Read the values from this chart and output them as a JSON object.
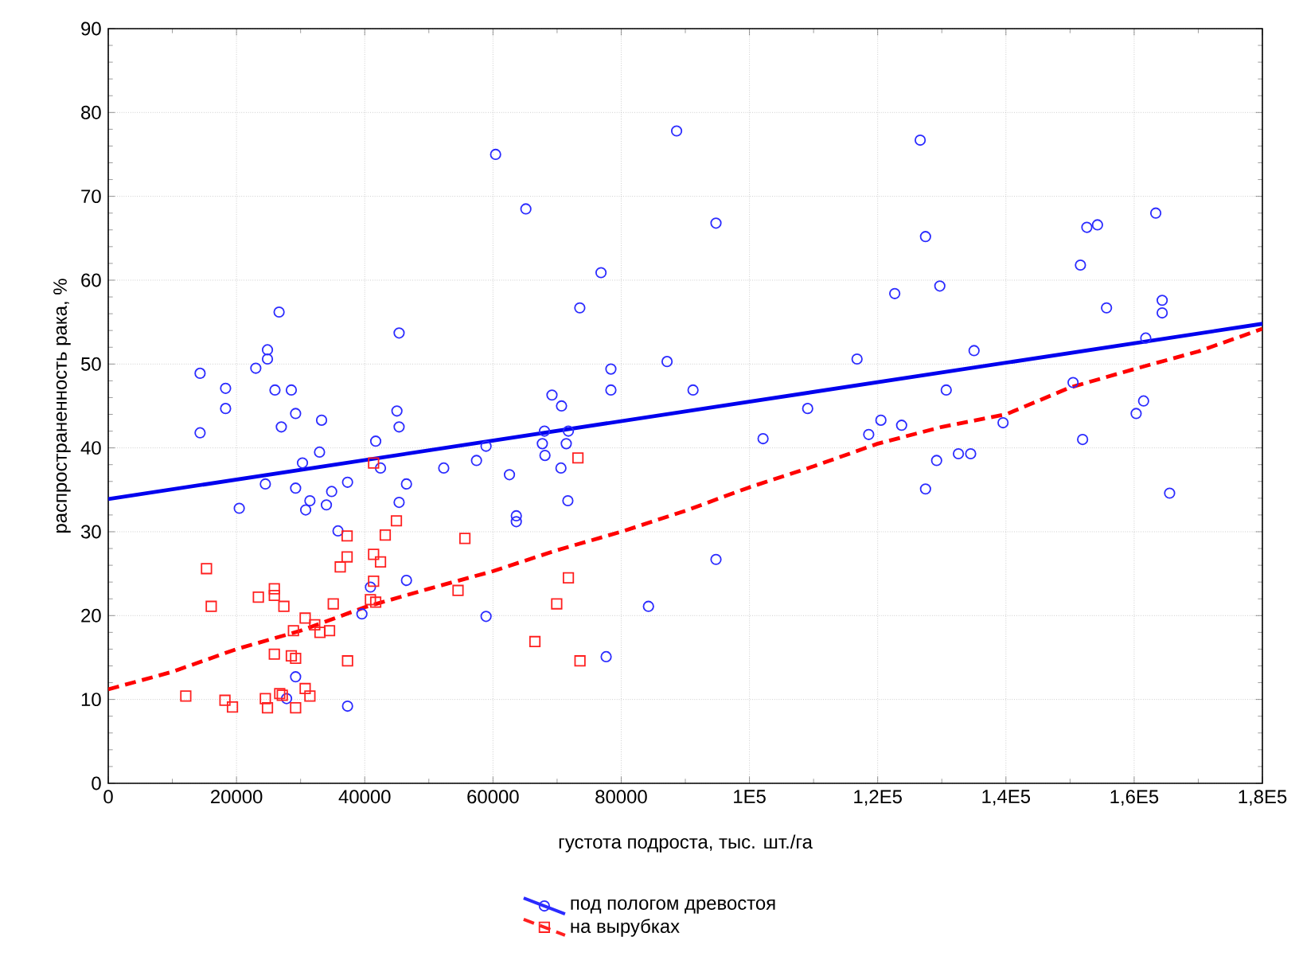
{
  "chart_data": {
    "type": "scatter",
    "xlabel": "густота подроста, тыс. шт./га",
    "ylabel": "распространенность рака, %",
    "xlim": [
      0,
      180000
    ],
    "ylim": [
      0,
      90
    ],
    "xticks": [
      0,
      20000,
      40000,
      60000,
      80000,
      {
        "value": 100000,
        "label": "1E5"
      },
      {
        "value": 120000,
        "label": "1,2E5"
      },
      {
        "value": 140000,
        "label": "1,4E5"
      },
      {
        "value": 160000,
        "label": "1,6E5"
      },
      {
        "value": 180000,
        "label": "1,8E5"
      }
    ],
    "yticks": [
      0,
      10,
      20,
      30,
      40,
      50,
      60,
      70,
      80,
      90
    ],
    "grid": true,
    "legend": "bottom",
    "series": [
      {
        "name": "под пологом древостоя",
        "marker": "circle",
        "color": "#2b2bff",
        "x": [
          26640,
          45360,
          24830,
          24830,
          23010,
          14320,
          18300,
          26000,
          28550,
          18300,
          29220,
          45020,
          45360,
          33270,
          26990,
          14320,
          41710,
          32950,
          30290,
          42460,
          52320,
          57430,
          58920,
          62570,
          24500,
          29220,
          34840,
          37320,
          46510,
          20430,
          31450,
          30790,
          34020,
          45360,
          63640,
          63640,
          35830,
          46510,
          40890,
          39560,
          58920,
          29220,
          27810,
          37320,
          60410,
          88640,
          65130,
          94780,
          76850,
          73540,
          87150,
          78390,
          116780,
          91200,
          78390,
          69200,
          70690,
          109080,
          68030,
          71760,
          102120,
          118600,
          67700,
          71430,
          68110,
          70600,
          71680,
          94780,
          84250,
          77650,
          126630,
          127460,
          163370,
          152620,
          154280,
          151620,
          122660,
          129690,
          155690,
          164370,
          164370,
          135030,
          161810,
          130690,
          150470,
          120500,
          123730,
          139550,
          161470,
          160310,
          151960,
          129190,
          132590,
          134500,
          127460,
          165530
        ],
        "values": [
          56.2,
          53.7,
          51.7,
          50.6,
          49.5,
          48.9,
          47.1,
          46.9,
          46.9,
          44.7,
          44.1,
          44.4,
          42.5,
          43.3,
          42.5,
          41.8,
          40.8,
          39.5,
          38.2,
          37.6,
          37.6,
          38.5,
          40.2,
          36.8,
          35.7,
          35.2,
          34.8,
          35.9,
          35.7,
          32.8,
          33.7,
          32.6,
          33.2,
          33.5,
          31.9,
          31.2,
          30.1,
          24.2,
          23.4,
          20.2,
          19.9,
          12.7,
          10.1,
          9.2,
          75.0,
          77.8,
          68.5,
          66.8,
          60.9,
          56.7,
          50.3,
          49.4,
          50.6,
          46.9,
          46.9,
          46.3,
          45.0,
          44.7,
          42.0,
          42.0,
          41.1,
          41.6,
          40.5,
          40.5,
          39.1,
          37.6,
          33.7,
          26.7,
          21.1,
          15.1,
          76.7,
          65.2,
          68.0,
          66.3,
          66.6,
          61.8,
          58.4,
          59.3,
          56.7,
          57.6,
          56.1,
          51.6,
          53.1,
          46.9,
          47.8,
          43.3,
          42.7,
          43.0,
          45.6,
          44.1,
          41.0,
          38.5,
          39.3,
          39.3,
          35.1,
          34.6
        ]
      },
      {
        "name": "на вырубках",
        "marker": "square",
        "color": "#ff2020",
        "x": [
          15320,
          16060,
          23410,
          25900,
          25900,
          27390,
          35090,
          37250,
          37250,
          36180,
          41380,
          43200,
          44940,
          41380,
          42460,
          41380,
          40890,
          41710,
          55620,
          54550,
          30710,
          32200,
          28880,
          33020,
          34510,
          25900,
          28550,
          29220,
          37320,
          12090,
          18200,
          19370,
          24500,
          24830,
          26740,
          27140,
          29220,
          30710,
          31450,
          66540,
          73250,
          71760,
          69940,
          73570
        ],
        "values": [
          25.6,
          21.1,
          22.2,
          23.2,
          22.4,
          21.1,
          21.4,
          29.5,
          27.0,
          25.8,
          38.2,
          29.6,
          31.3,
          27.3,
          26.4,
          24.1,
          21.9,
          21.6,
          29.2,
          23.0,
          19.7,
          18.9,
          18.2,
          18.0,
          18.2,
          15.4,
          15.2,
          14.9,
          14.6,
          10.4,
          9.9,
          9.1,
          10.1,
          9.0,
          10.7,
          10.5,
          9.0,
          11.3,
          10.4,
          16.9,
          38.8,
          24.5,
          21.4,
          14.6
        ]
      },
      {
        "type": "line",
        "marker": "none",
        "line_style": "solid",
        "color": "#0000ee",
        "x": [
          0,
          180000
        ],
        "values": [
          33.9,
          54.8
        ]
      },
      {
        "type": "line",
        "marker": "none",
        "line_style": "dashed",
        "color": "#ff0000",
        "x": [
          0,
          10000,
          20000,
          30000,
          40000,
          50000,
          60000,
          70000,
          80000,
          90000,
          100000,
          110000,
          120000,
          130000,
          140000,
          150000,
          160000,
          170000,
          180000
        ],
        "values": [
          11.2,
          13.3,
          16.0,
          18.2,
          21.0,
          23.2,
          25.3,
          27.8,
          30.0,
          32.5,
          35.3,
          37.8,
          40.5,
          42.5,
          44.0,
          47.2,
          49.4,
          51.5,
          54.2
        ]
      }
    ]
  }
}
